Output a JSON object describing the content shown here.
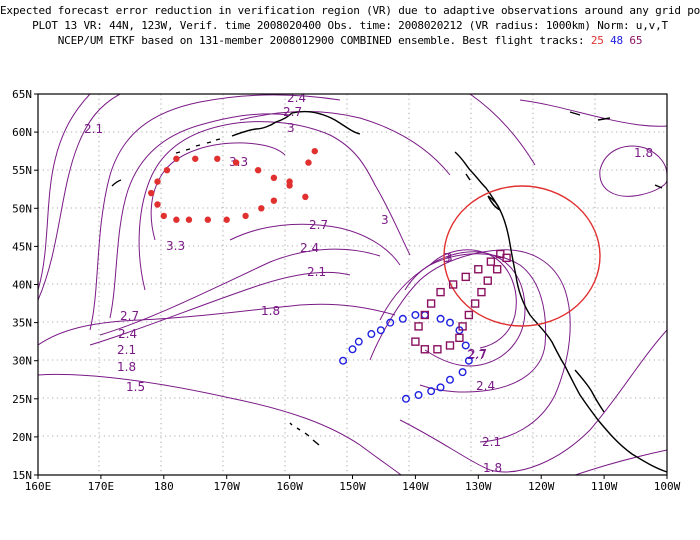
{
  "header": {
    "line1": "Expected forecast error reduction in verification region (VR) due to adaptive observations around any grid point.",
    "line2": "PLOT 13 VR: 44N, 123W, Verif. time 2008020400 Obs. time: 2008020212 (VR radius: 1000km) Norm: u,v,T",
    "line3_text": "NCEP/UM ETKF based on 131-member 2008012900 COMBINED ensemble.  Best flight tracks:",
    "track_a": "25",
    "track_b": "48",
    "track_c": "65"
  },
  "colors": {
    "contour": "#7a1a86",
    "track_25": "#e03030",
    "track_48": "#2020e0",
    "track_65": "#8a1060",
    "vr_circle": "#e03030",
    "coast": "#000000",
    "grid": "#909090"
  },
  "map": {
    "lon_ticks": [
      "160E",
      "170E",
      "180",
      "170W",
      "160W",
      "150W",
      "140W",
      "130W",
      "120W",
      "110W",
      "100W"
    ],
    "lat_ticks": [
      "65N",
      "60N",
      "55N",
      "50N",
      "45N",
      "40N",
      "35N",
      "30N",
      "25N",
      "20N",
      "15N"
    ],
    "contour_labels": [
      "2.4",
      "2.7",
      "3",
      "2.1",
      "3.3",
      "1.8",
      "3",
      "2.7",
      "3.3",
      "3",
      "2.4",
      "2.7",
      "2.1",
      "2.7",
      "2.4",
      "2.1",
      "1.8",
      "1.5",
      "1.8",
      "3",
      "2.7",
      "2.4",
      "2.1",
      "1.8"
    ]
  },
  "chart_data": {
    "type": "map-contour",
    "lon_range": [
      "160E",
      "100W"
    ],
    "lat_range": [
      "15N",
      "65N"
    ],
    "verification_region": {
      "center_lat": "44N",
      "center_lon": "123W",
      "radius_km": 1000
    },
    "contour_levels": [
      1.5,
      1.8,
      2.1,
      2.4,
      2.7,
      3.0,
      3.3
    ],
    "track_25_points": [
      [
        -178,
        56.5
      ],
      [
        -175,
        56.5
      ],
      [
        -171.5,
        56.5
      ],
      [
        -168.5,
        56
      ],
      [
        -165,
        55
      ],
      [
        -162.5,
        54
      ],
      [
        -160,
        53
      ],
      [
        -157.5,
        51.5
      ],
      [
        -179.5,
        55
      ],
      [
        -181,
        53.5
      ],
      [
        -182,
        52
      ],
      [
        -181,
        50.5
      ],
      [
        -180,
        49
      ],
      [
        -178,
        48.5
      ],
      [
        -176,
        48.5
      ],
      [
        -173,
        48.5
      ],
      [
        -170,
        48.5
      ],
      [
        -167,
        49
      ],
      [
        -164.5,
        50
      ],
      [
        -162.5,
        51
      ],
      [
        -160,
        53.5
      ],
      [
        -157,
        56
      ],
      [
        -156,
        57.5
      ]
    ],
    "track_48_points": [
      [
        -149,
        32.5
      ],
      [
        -147,
        33.5
      ],
      [
        -145.5,
        34
      ],
      [
        -144,
        35
      ],
      [
        -142,
        35.5
      ],
      [
        -140,
        36
      ],
      [
        -138.5,
        36
      ],
      [
        -136,
        35.5
      ],
      [
        -134.5,
        35
      ],
      [
        -133,
        34
      ],
      [
        -132,
        32
      ],
      [
        -131.5,
        30
      ],
      [
        -132.5,
        28.5
      ],
      [
        -134.5,
        27.5
      ],
      [
        -136,
        26.5
      ],
      [
        -137.5,
        26
      ],
      [
        -139.5,
        25.5
      ],
      [
        -141.5,
        25
      ],
      [
        -151.5,
        30
      ],
      [
        -150,
        31.5
      ]
    ],
    "track_65_points": [
      [
        -139.5,
        34.5
      ],
      [
        -138.5,
        36
      ],
      [
        -137.5,
        37.5
      ],
      [
        -136,
        39
      ],
      [
        -134,
        40
      ],
      [
        -132,
        41
      ],
      [
        -130,
        42
      ],
      [
        -128,
        43
      ],
      [
        -126.5,
        44
      ],
      [
        -125.5,
        43.5
      ],
      [
        -127,
        42
      ],
      [
        -128.5,
        40.5
      ],
      [
        -129.5,
        39
      ],
      [
        -130.5,
        37.5
      ],
      [
        -131.5,
        36
      ],
      [
        -132.5,
        34.5
      ],
      [
        -133,
        33
      ],
      [
        -134.5,
        32
      ],
      [
        -136.5,
        31.5
      ],
      [
        -138.5,
        31.5
      ],
      [
        -140,
        32.5
      ]
    ]
  }
}
